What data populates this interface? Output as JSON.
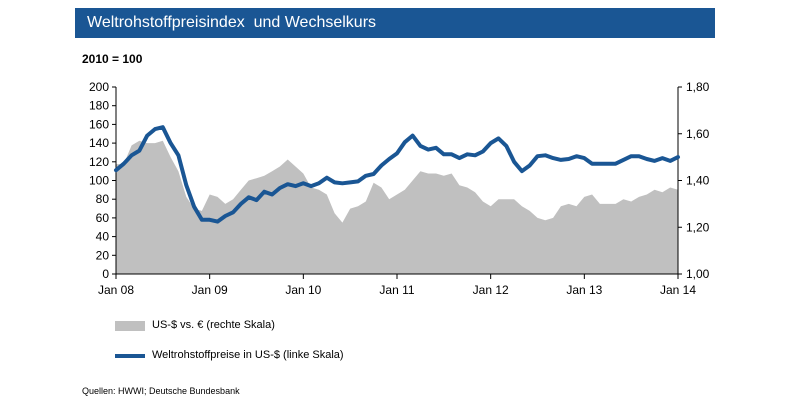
{
  "header": {
    "title": "Weltrohstoffpreisindex  und Wechselkurs"
  },
  "subtitle": "2010 = 100",
  "legend": {
    "area_label": "US-$ vs. € (rechte Skala)",
    "line_label": "Weltrohstoffpreise in US-$ (linke Skala)"
  },
  "source": "Quellen:  HWWI;  Deutsche  Bundesbank",
  "chart_data": {
    "type": "line",
    "title": "Weltrohstoffpreisindex  und Wechselkurs",
    "subtitle": "2010 = 100",
    "x_start": "Jan 08",
    "x_end": "Jan 14",
    "x_tick_labels": [
      "Jan 08",
      "Jan 09",
      "Jan 10",
      "Jan 11",
      "Jan 12",
      "Jan 13",
      "Jan 14"
    ],
    "y_left": {
      "ylim": [
        0,
        200
      ],
      "ticks": [
        "0",
        "20",
        "40",
        "60",
        "80",
        "100",
        "120",
        "140",
        "160",
        "180",
        "200"
      ]
    },
    "y_right": {
      "ylim": [
        1.0,
        1.8
      ],
      "ticks": [
        "1,00",
        "1,20",
        "1,40",
        "1,60",
        "1,80"
      ]
    },
    "legend_position": "bottom-left",
    "grid": false,
    "colors": {
      "line": "#1a5694",
      "area": "#c0c0c0",
      "header": "#1a5694"
    },
    "series": [
      {
        "name": "US-$ vs. € (rechte Skala)",
        "type": "area",
        "axis": "right",
        "values": [
          1.47,
          1.47,
          1.55,
          1.57,
          1.56,
          1.56,
          1.57,
          1.5,
          1.44,
          1.33,
          1.28,
          1.27,
          1.34,
          1.33,
          1.3,
          1.32,
          1.36,
          1.4,
          1.41,
          1.42,
          1.44,
          1.46,
          1.49,
          1.46,
          1.43,
          1.37,
          1.36,
          1.34,
          1.26,
          1.22,
          1.28,
          1.29,
          1.31,
          1.39,
          1.37,
          1.32,
          1.34,
          1.36,
          1.4,
          1.44,
          1.43,
          1.43,
          1.42,
          1.43,
          1.38,
          1.37,
          1.35,
          1.31,
          1.29,
          1.32,
          1.32,
          1.32,
          1.29,
          1.27,
          1.24,
          1.23,
          1.24,
          1.29,
          1.3,
          1.29,
          1.33,
          1.34,
          1.3,
          1.3,
          1.3,
          1.32,
          1.31,
          1.33,
          1.34,
          1.36,
          1.35,
          1.37,
          1.36
        ]
      },
      {
        "name": "Weltrohstoffpreise in US-$ (linke Skala)",
        "type": "line",
        "axis": "left",
        "values": [
          111,
          118,
          127,
          132,
          148,
          155,
          157,
          140,
          127,
          95,
          72,
          58,
          58,
          56,
          62,
          66,
          75,
          82,
          79,
          88,
          85,
          92,
          96,
          94,
          97,
          94,
          97,
          103,
          98,
          97,
          98,
          99,
          105,
          107,
          116,
          123,
          129,
          141,
          148,
          137,
          133,
          135,
          128,
          128,
          124,
          128,
          127,
          131,
          140,
          145,
          137,
          120,
          110,
          116,
          126,
          127,
          124,
          122,
          123,
          126,
          124,
          118,
          118,
          118,
          118,
          122,
          126,
          126,
          123,
          121,
          124,
          121,
          125
        ]
      }
    ]
  }
}
